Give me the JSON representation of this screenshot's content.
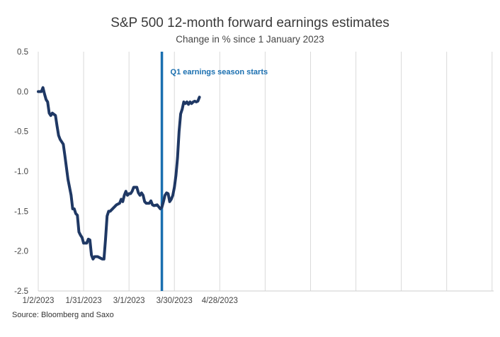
{
  "chart_data": {
    "type": "line",
    "title": "S&P 500 12-month forward earnings estimates",
    "subtitle": "Change in % since 1 January 2023",
    "source": "Source: Bloomberg and Saxo",
    "xlabel": "",
    "ylabel": "",
    "ylim": [
      -2.5,
      0.5
    ],
    "yticks": [
      0.5,
      0.0,
      -0.5,
      -1.0,
      -1.5,
      -2.0,
      -2.5
    ],
    "ytick_labels": [
      "0.5",
      "0.0",
      "-0.5",
      "-1.0",
      "-1.5",
      "-2.0",
      "-2.5"
    ],
    "xlim": [
      "2023-01-02",
      "2023-10-20"
    ],
    "xticks": [
      "2023-01-02",
      "2023-01-31",
      "2023-03-01",
      "2023-03-30",
      "2023-04-28",
      "2023-05-27",
      "2023-06-25",
      "2023-07-24",
      "2023-08-22",
      "2023-09-20",
      "2023-10-19"
    ],
    "xtick_labels": [
      "1/2/2023",
      "1/31/2023",
      "3/1/2023",
      "3/30/2023",
      "4/28/2023",
      "",
      "",
      "",
      "",
      "",
      ""
    ],
    "grid": "vertical",
    "line_color": "#1f3864",
    "series": [
      {
        "name": "",
        "points": [
          [
            "2023-01-02",
            0.0
          ],
          [
            "2023-01-04",
            0.0
          ],
          [
            "2023-01-05",
            0.05
          ],
          [
            "2023-01-06",
            -0.03
          ],
          [
            "2023-01-07",
            -0.1
          ],
          [
            "2023-01-08",
            -0.13
          ],
          [
            "2023-01-09",
            -0.27
          ],
          [
            "2023-01-10",
            -0.3
          ],
          [
            "2023-01-11",
            -0.27
          ],
          [
            "2023-01-13",
            -0.3
          ],
          [
            "2023-01-14",
            -0.43
          ],
          [
            "2023-01-15",
            -0.55
          ],
          [
            "2023-01-16",
            -0.6
          ],
          [
            "2023-01-17",
            -0.63
          ],
          [
            "2023-01-18",
            -0.66
          ],
          [
            "2023-01-19",
            -0.8
          ],
          [
            "2023-01-20",
            -0.95
          ],
          [
            "2023-01-21",
            -1.1
          ],
          [
            "2023-01-23",
            -1.3
          ],
          [
            "2023-01-24",
            -1.47
          ],
          [
            "2023-01-25",
            -1.47
          ],
          [
            "2023-01-26",
            -1.53
          ],
          [
            "2023-01-27",
            -1.55
          ],
          [
            "2023-01-28",
            -1.76
          ],
          [
            "2023-01-29",
            -1.8
          ],
          [
            "2023-01-30",
            -1.83
          ],
          [
            "2023-01-31",
            -1.9
          ],
          [
            "2023-02-02",
            -1.9
          ],
          [
            "2023-02-03",
            -1.85
          ],
          [
            "2023-02-04",
            -1.86
          ],
          [
            "2023-02-05",
            -2.05
          ],
          [
            "2023-02-06",
            -2.1
          ],
          [
            "2023-02-07",
            -2.07
          ],
          [
            "2023-02-09",
            -2.07
          ],
          [
            "2023-02-12",
            -2.1
          ],
          [
            "2023-02-13",
            -2.1
          ],
          [
            "2023-02-14",
            -1.85
          ],
          [
            "2023-02-15",
            -1.56
          ],
          [
            "2023-02-16",
            -1.5
          ],
          [
            "2023-02-17",
            -1.5
          ],
          [
            "2023-02-18",
            -1.48
          ],
          [
            "2023-02-20",
            -1.44
          ],
          [
            "2023-02-21",
            -1.42
          ],
          [
            "2023-02-23",
            -1.4
          ],
          [
            "2023-02-24",
            -1.35
          ],
          [
            "2023-02-25",
            -1.38
          ],
          [
            "2023-02-26",
            -1.3
          ],
          [
            "2023-02-27",
            -1.25
          ],
          [
            "2023-02-28",
            -1.3
          ],
          [
            "2023-03-01",
            -1.28
          ],
          [
            "2023-03-02",
            -1.28
          ],
          [
            "2023-03-03",
            -1.25
          ],
          [
            "2023-03-04",
            -1.2
          ],
          [
            "2023-03-06",
            -1.2
          ],
          [
            "2023-03-07",
            -1.27
          ],
          [
            "2023-03-08",
            -1.3
          ],
          [
            "2023-03-09",
            -1.27
          ],
          [
            "2023-03-10",
            -1.3
          ],
          [
            "2023-03-11",
            -1.38
          ],
          [
            "2023-03-12",
            -1.4
          ],
          [
            "2023-03-14",
            -1.4
          ],
          [
            "2023-03-15",
            -1.37
          ],
          [
            "2023-03-16",
            -1.42
          ],
          [
            "2023-03-17",
            -1.43
          ],
          [
            "2023-03-19",
            -1.42
          ],
          [
            "2023-03-21",
            -1.47
          ],
          [
            "2023-03-22",
            -1.45
          ],
          [
            "2023-03-23",
            -1.38
          ],
          [
            "2023-03-24",
            -1.3
          ],
          [
            "2023-03-25",
            -1.27
          ],
          [
            "2023-03-26",
            -1.28
          ],
          [
            "2023-03-27",
            -1.38
          ],
          [
            "2023-03-28",
            -1.35
          ],
          [
            "2023-03-29",
            -1.3
          ],
          [
            "2023-03-30",
            -1.2
          ],
          [
            "2023-03-31",
            -1.05
          ],
          [
            "2023-04-01",
            -0.83
          ],
          [
            "2023-04-02",
            -0.5
          ],
          [
            "2023-04-03",
            -0.28
          ],
          [
            "2023-04-04",
            -0.22
          ],
          [
            "2023-04-05",
            -0.13
          ],
          [
            "2023-04-06",
            -0.15
          ],
          [
            "2023-04-07",
            -0.13
          ],
          [
            "2023-04-08",
            -0.16
          ],
          [
            "2023-04-09",
            -0.13
          ],
          [
            "2023-04-10",
            -0.15
          ],
          [
            "2023-04-11",
            -0.13
          ],
          [
            "2023-04-12",
            -0.12
          ],
          [
            "2023-04-13",
            -0.13
          ],
          [
            "2023-04-14",
            -0.12
          ],
          [
            "2023-04-15",
            -0.07
          ]
        ]
      }
    ],
    "annotation": {
      "label": "Q1 earnings season starts",
      "x": "2023-03-22",
      "color": "#1a6fb0"
    }
  }
}
